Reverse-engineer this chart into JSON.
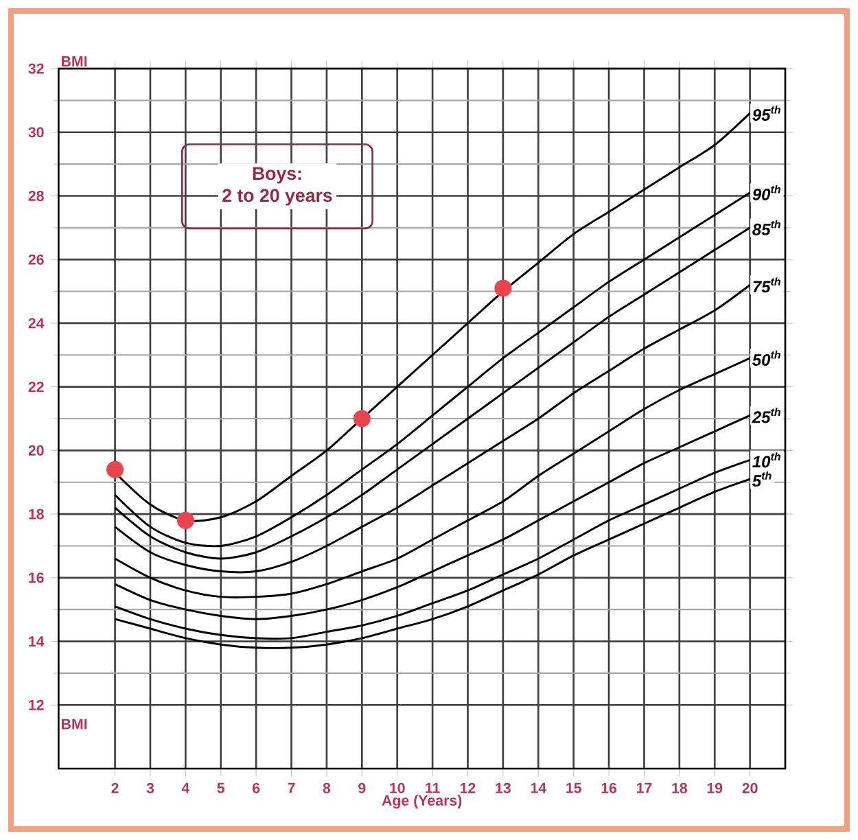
{
  "chart_data": {
    "type": "line",
    "title": "Boys:",
    "subtitle": "2 to 20 years",
    "xlabel": "Age (Years)",
    "ylabel": "BMI",
    "x": [
      2,
      3,
      4,
      5,
      6,
      7,
      8,
      9,
      10,
      11,
      12,
      13,
      14,
      15,
      16,
      17,
      18,
      19,
      20
    ],
    "xlim": [
      0.4,
      21
    ],
    "ylim": [
      10,
      32
    ],
    "xticks": [
      2,
      3,
      4,
      5,
      6,
      7,
      8,
      9,
      10,
      11,
      12,
      13,
      14,
      15,
      16,
      17,
      18,
      19,
      20
    ],
    "yticks": [
      12,
      14,
      16,
      18,
      20,
      22,
      24,
      26,
      28,
      30,
      32
    ],
    "grid": true,
    "line_style": "solid",
    "series": [
      {
        "name": "95$^{th}$",
        "color": "#000000",
        "values": [
          19.3,
          18.3,
          17.8,
          17.9,
          18.4,
          19.2,
          20.0,
          21.0,
          22.0,
          23.0,
          24.0,
          25.0,
          25.9,
          26.8,
          27.5,
          28.2,
          28.9,
          29.6,
          30.6
        ]
      },
      {
        "name": "90$^{th}$",
        "color": "#000000",
        "values": [
          18.6,
          17.6,
          17.1,
          17.0,
          17.3,
          17.9,
          18.6,
          19.4,
          20.2,
          21.1,
          22.0,
          22.9,
          23.7,
          24.5,
          25.3,
          26.0,
          26.7,
          27.4,
          28.1
        ]
      },
      {
        "name": "85$^{th}$",
        "color": "#000000",
        "values": [
          18.2,
          17.3,
          16.8,
          16.6,
          16.8,
          17.3,
          17.9,
          18.6,
          19.4,
          20.2,
          21.0,
          21.8,
          22.6,
          23.4,
          24.2,
          24.9,
          25.6,
          26.3,
          27.0
        ]
      },
      {
        "name": "75$^{th}$",
        "color": "#000000",
        "values": [
          17.6,
          16.8,
          16.4,
          16.2,
          16.2,
          16.5,
          17.0,
          17.6,
          18.2,
          18.9,
          19.6,
          20.3,
          21.0,
          21.8,
          22.5,
          23.2,
          23.8,
          24.4,
          25.2
        ]
      },
      {
        "name": "50$^{th}$",
        "color": "#000000",
        "values": [
          16.6,
          16.0,
          15.6,
          15.4,
          15.4,
          15.5,
          15.8,
          16.2,
          16.6,
          17.2,
          17.8,
          18.4,
          19.2,
          19.9,
          20.6,
          21.3,
          21.9,
          22.4,
          22.9
        ]
      },
      {
        "name": "25$^{th}$",
        "color": "#000000",
        "values": [
          15.8,
          15.3,
          15.0,
          14.8,
          14.7,
          14.8,
          15.0,
          15.3,
          15.7,
          16.2,
          16.7,
          17.2,
          17.8,
          18.4,
          19.0,
          19.6,
          20.1,
          20.6,
          21.1
        ]
      },
      {
        "name": "10$^{th}$",
        "color": "#000000",
        "values": [
          15.1,
          14.7,
          14.4,
          14.2,
          14.1,
          14.1,
          14.3,
          14.5,
          14.8,
          15.2,
          15.6,
          16.1,
          16.6,
          17.2,
          17.8,
          18.3,
          18.8,
          19.3,
          19.7
        ]
      },
      {
        "name": "5$^{th}$",
        "color": "#000000",
        "values": [
          14.7,
          14.4,
          14.1,
          13.9,
          13.8,
          13.8,
          13.9,
          14.1,
          14.4,
          14.7,
          15.1,
          15.6,
          16.1,
          16.7,
          17.2,
          17.7,
          18.2,
          18.7,
          19.1
        ]
      },
      {
        "type": "scatter",
        "marker": "circle",
        "color": "#e8454f",
        "x": [
          2,
          4,
          9,
          13
        ],
        "values": [
          19.4,
          17.8,
          21.0,
          25.1
        ]
      }
    ]
  }
}
